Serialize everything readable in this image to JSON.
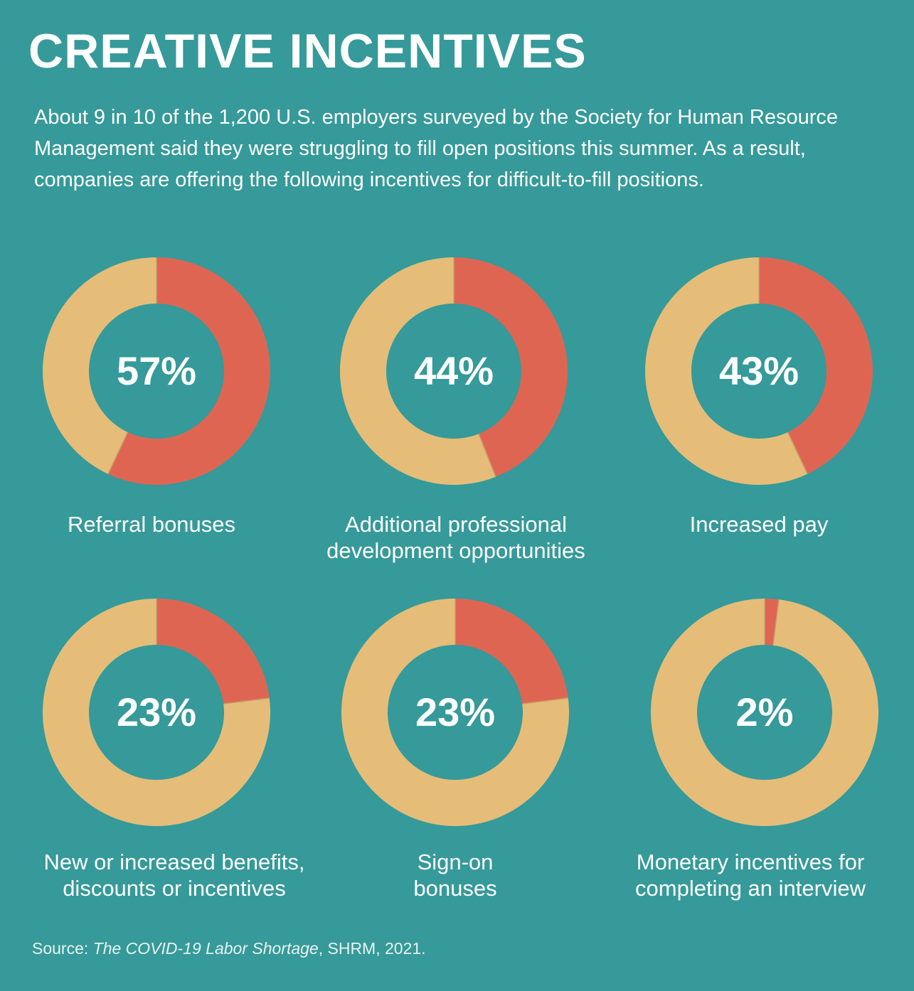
{
  "title": "CREATIVE INCENTIVES",
  "subtitle": "About 9 in 10 of the 1,200 U.S. employers surveyed by the Society for Human Resource Management said they were struggling to fill open positions this summer. As a result, companies are offering the following incentives for difficult-to-fill positions.",
  "source": {
    "prefix": "Source: ",
    "title": "The COVID-19 Labor Shortage",
    "suffix": ", SHRM, 2021."
  },
  "colors": {
    "background": "#359a99",
    "highlight": "#df6553",
    "remainder": "#e5bd79"
  },
  "chart_data": {
    "type": "pie",
    "title": "CREATIVE INCENTIVES",
    "items": [
      {
        "label": "Referral bonuses",
        "value": 57,
        "display": "57%"
      },
      {
        "label": "Additional professional development opportunities",
        "value": 44,
        "display": "44%"
      },
      {
        "label": "Increased pay",
        "value": 43,
        "display": "43%"
      },
      {
        "label": "New or increased benefits, discounts or incentives",
        "value": 23,
        "display": "23%"
      },
      {
        "label": "Sign-on bonuses",
        "value": 23,
        "display": "23%"
      },
      {
        "label": "Monetary incentives for completing an interview",
        "value": 2,
        "display": "2%"
      }
    ]
  }
}
